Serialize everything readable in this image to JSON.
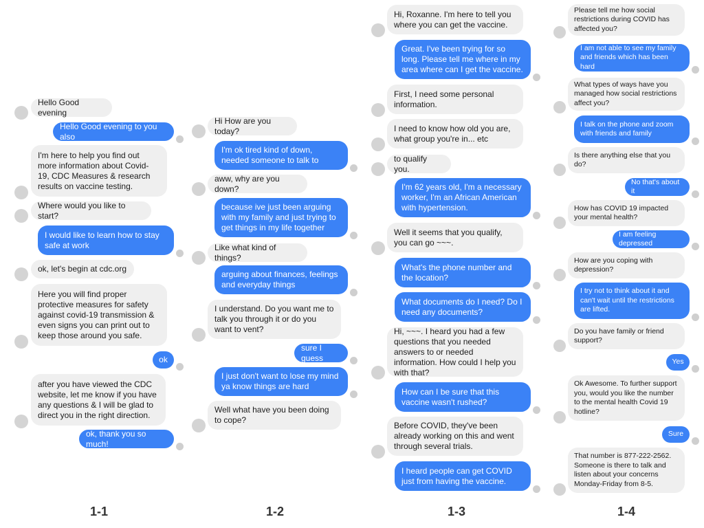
{
  "panels": [
    {
      "label": "1-1",
      "messages": [
        {
          "from": "bot",
          "text": "Hello Good evening"
        },
        {
          "from": "user",
          "text": "Hello Good evening to you also"
        },
        {
          "from": "bot",
          "text": "I'm here to help you find out more information about Covid-19, CDC Measures & research results on vaccine testing."
        },
        {
          "from": "bot",
          "text": "Where would you like to start?"
        },
        {
          "from": "user",
          "text": "I would like to learn how to stay safe at work"
        },
        {
          "from": "bot",
          "text": "ok, let's begin at cdc.org"
        },
        {
          "from": "bot",
          "text": "Here you will find proper protective measures for safety against covid-19 transmission & even signs you can print out to keep those around you safe."
        },
        {
          "from": "user",
          "text": "ok"
        },
        {
          "from": "bot",
          "text": "after you have viewed the CDC website, let me know if you have any questions & I will be glad to direct you in the right direction."
        },
        {
          "from": "user",
          "text": "ok, thank you so much!"
        }
      ]
    },
    {
      "label": "1-2",
      "messages": [
        {
          "from": "bot",
          "text": "Hi How are you today?"
        },
        {
          "from": "user",
          "text": "I'm ok tired kind of down, needed someone to talk to"
        },
        {
          "from": "bot",
          "text": "aww, why are you down?"
        },
        {
          "from": "user",
          "text": "because ive just been arguing with my family and just trying to get things in my life together"
        },
        {
          "from": "bot",
          "text": "Like what kind of things?"
        },
        {
          "from": "user",
          "text": "arguing about finances, feelings and everyday things"
        },
        {
          "from": "bot",
          "text": "I understand. Do you want me to talk you through it or do you want to vent?"
        },
        {
          "from": "user",
          "text": "sure I guess"
        },
        {
          "from": "user",
          "text": "I just don't want to lose my mind ya know things are hard"
        },
        {
          "from": "bot",
          "text": "Well what have you been doing to cope?"
        }
      ]
    },
    {
      "label": "1-3",
      "messages": [
        {
          "from": "bot",
          "text": "Hi, Roxanne. I'm here to tell you where you can get the vaccine."
        },
        {
          "from": "user",
          "text": "Great. I've been trying for so long. Please tell me where in my area where can I get the vaccine."
        },
        {
          "from": "bot",
          "text": "First, I need some personal information."
        },
        {
          "from": "bot",
          "text": "I need to know how old you are, what group you're in... etc"
        },
        {
          "from": "bot",
          "text": "to qualify you."
        },
        {
          "from": "user",
          "text": "I'm 62 years old, I'm a necessary worker, I'm an African American with hypertension."
        },
        {
          "from": "bot",
          "text": "Well it seems that you qualify, you can go ~~~."
        },
        {
          "from": "user",
          "text": "What's the phone number and the location?"
        },
        {
          "from": "user",
          "text": "What documents do I need? Do I need any documents?"
        },
        {
          "from": "bot",
          "text": "Hi, ~~~. I heard you had a few questions that you needed answers to or needed information. How could I help you with that?"
        },
        {
          "from": "user",
          "text": "How can I be sure that this vaccine wasn't rushed?"
        },
        {
          "from": "bot",
          "text": "Before COVID, they've been already working on this and went through several trials."
        },
        {
          "from": "user",
          "text": "I heard people can get COVID just from having the vaccine."
        }
      ]
    },
    {
      "label": "1-4",
      "messages": [
        {
          "from": "bot",
          "text": "Please tell me how social restrictions during COVID has affected you?"
        },
        {
          "from": "user",
          "text": "I am not able to see my family and friends which has been hard"
        },
        {
          "from": "bot",
          "text": "What types of ways have you managed how social restrictions affect you?"
        },
        {
          "from": "user",
          "text": "I talk on the phone and zoom with friends and family"
        },
        {
          "from": "bot",
          "text": "Is there anything else that you do?"
        },
        {
          "from": "user",
          "text": "No that's about it"
        },
        {
          "from": "bot",
          "text": "How has COVID 19 impacted your mental health?"
        },
        {
          "from": "user",
          "text": "I am feeling depressed"
        },
        {
          "from": "bot",
          "text": "How are you coping with depression?"
        },
        {
          "from": "user",
          "text": "I try not to think about it and can't wait until the restrictions are lifted."
        },
        {
          "from": "bot",
          "text": "Do you have family or friend support?"
        },
        {
          "from": "user",
          "text": "Yes"
        },
        {
          "from": "bot",
          "text": "Ok Awesome. To further support you, would you like the number to the mental health Covid 19 hotline?"
        },
        {
          "from": "user",
          "text": "Sure"
        },
        {
          "from": "bot",
          "text": "That number is 877-222-2562. Someone is there to talk and listen about your concerns Monday-Friday from 8-5."
        }
      ]
    }
  ]
}
